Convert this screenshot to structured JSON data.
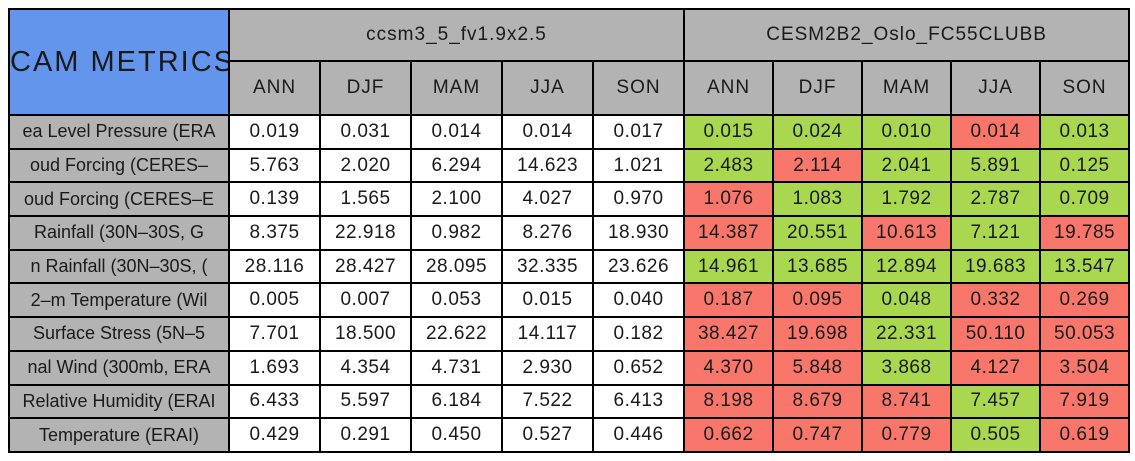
{
  "colors": {
    "title_bg": "#6495ed",
    "header_bg": "#b3b3b3",
    "better": "#a9d750",
    "worse": "#f9766b",
    "border": "#000000",
    "plain_cell_bg": "#ffffff"
  },
  "chart_data": {
    "type": "table",
    "title": "CAM METRICS",
    "column_groups": [
      "ccsm3_5_fv1.9x2.5",
      "CESM2B2_Oslo_FC55CLUBB"
    ],
    "columns": [
      "ANN",
      "DJF",
      "MAM",
      "JJA",
      "SON"
    ],
    "legend_note": "right-model cells shaded green (better) or red (worse) vs left model",
    "rows": [
      {
        "label": "ea Level Pressure (ERA",
        "left_values": [
          "0.019",
          "0.031",
          "0.014",
          "0.014",
          "0.017"
        ],
        "right_values": [
          "0.015",
          "0.024",
          "0.010",
          "0.014",
          "0.013"
        ],
        "right_status": [
          "better",
          "better",
          "better",
          "worse",
          "better"
        ]
      },
      {
        "label": "oud Forcing (CERES–",
        "left_values": [
          "5.763",
          "2.020",
          "6.294",
          "14.623",
          "1.021"
        ],
        "right_values": [
          "2.483",
          "2.114",
          "2.041",
          "5.891",
          "0.125"
        ],
        "right_status": [
          "better",
          "worse",
          "better",
          "better",
          "better"
        ]
      },
      {
        "label": "oud Forcing (CERES–E",
        "left_values": [
          "0.139",
          "1.565",
          "2.100",
          "4.027",
          "0.970"
        ],
        "right_values": [
          "1.076",
          "1.083",
          "1.792",
          "2.787",
          "0.709"
        ],
        "right_status": [
          "worse",
          "better",
          "better",
          "better",
          "better"
        ]
      },
      {
        "label": "Rainfall (30N–30S, G",
        "left_values": [
          "8.375",
          "22.918",
          "0.982",
          "8.276",
          "18.930"
        ],
        "right_values": [
          "14.387",
          "20.551",
          "10.613",
          "7.121",
          "19.785"
        ],
        "right_status": [
          "worse",
          "better",
          "worse",
          "better",
          "worse"
        ]
      },
      {
        "label": "n Rainfall (30N–30S, (",
        "left_values": [
          "28.116",
          "28.427",
          "28.095",
          "32.335",
          "23.626"
        ],
        "right_values": [
          "14.961",
          "13.685",
          "12.894",
          "19.683",
          "13.547"
        ],
        "right_status": [
          "better",
          "better",
          "better",
          "better",
          "better"
        ]
      },
      {
        "label": "2–m Temperature (Wil",
        "left_values": [
          "0.005",
          "0.007",
          "0.053",
          "0.015",
          "0.040"
        ],
        "right_values": [
          "0.187",
          "0.095",
          "0.048",
          "0.332",
          "0.269"
        ],
        "right_status": [
          "worse",
          "worse",
          "better",
          "worse",
          "worse"
        ]
      },
      {
        "label": "Surface Stress (5N–5",
        "left_values": [
          "7.701",
          "18.500",
          "22.622",
          "14.117",
          "0.182"
        ],
        "right_values": [
          "38.427",
          "19.698",
          "22.331",
          "50.110",
          "50.053"
        ],
        "right_status": [
          "worse",
          "worse",
          "better",
          "worse",
          "worse"
        ]
      },
      {
        "label": "nal Wind (300mb, ERA",
        "left_values": [
          "1.693",
          "4.354",
          "4.731",
          "2.930",
          "0.652"
        ],
        "right_values": [
          "4.370",
          "5.848",
          "3.868",
          "4.127",
          "3.504"
        ],
        "right_status": [
          "worse",
          "worse",
          "better",
          "worse",
          "worse"
        ]
      },
      {
        "label": "Relative Humidity (ERAI",
        "left_values": [
          "6.433",
          "5.597",
          "6.184",
          "7.522",
          "6.413"
        ],
        "right_values": [
          "8.198",
          "8.679",
          "8.741",
          "7.457",
          "7.919"
        ],
        "right_status": [
          "worse",
          "worse",
          "worse",
          "better",
          "worse"
        ]
      },
      {
        "label": "Temperature (ERAI)",
        "left_values": [
          "0.429",
          "0.291",
          "0.450",
          "0.527",
          "0.446"
        ],
        "right_values": [
          "0.662",
          "0.747",
          "0.779",
          "0.505",
          "0.619"
        ],
        "right_status": [
          "worse",
          "worse",
          "worse",
          "better",
          "worse"
        ]
      }
    ]
  }
}
